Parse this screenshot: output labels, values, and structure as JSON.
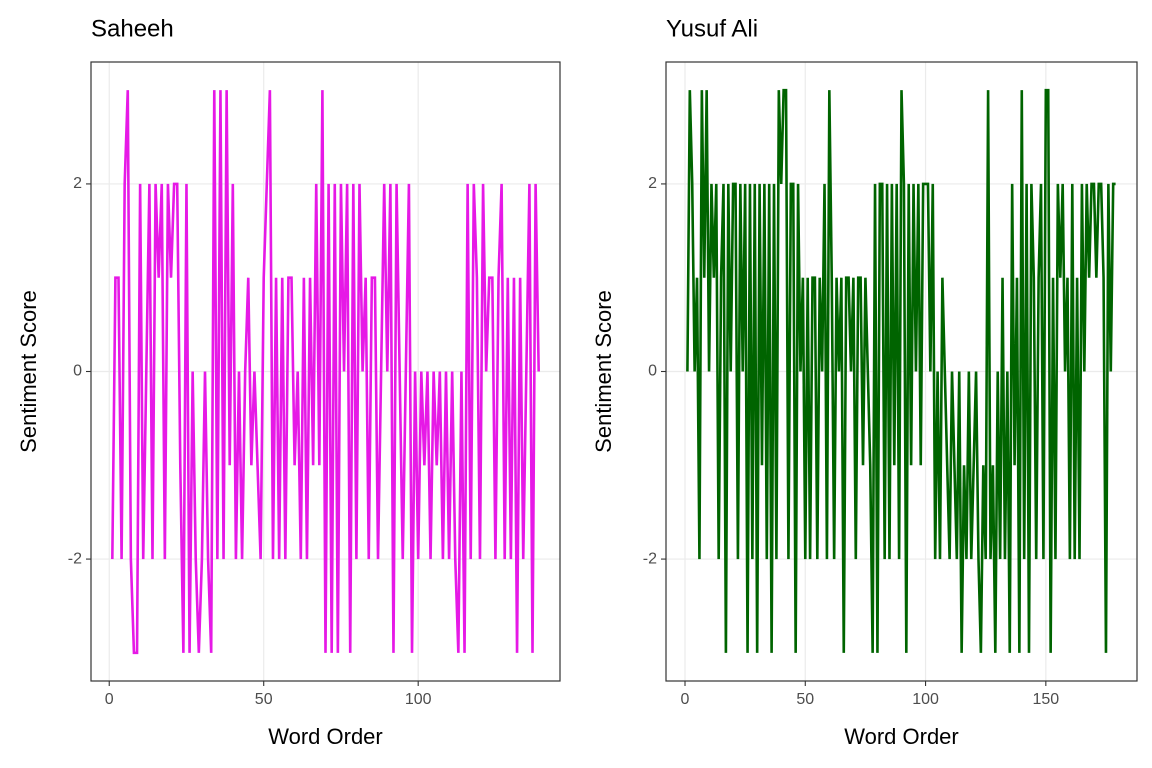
{
  "chart_data": [
    {
      "type": "line",
      "title": "Saheeh",
      "x_label": "Word Order",
      "y_label": "Sentiment Score",
      "color": "#e619e6",
      "xlim": [
        -5.9,
        145.9
      ],
      "ylim": [
        -3.3,
        3.3
      ],
      "xticks": [
        0,
        50,
        100
      ],
      "yticks": [
        -2,
        0,
        2
      ],
      "grid": true,
      "x": [
        1,
        2,
        3,
        4,
        5,
        6,
        7,
        8,
        9,
        10,
        11,
        12,
        13,
        14,
        15,
        16,
        17,
        18,
        19,
        20,
        21,
        22,
        23,
        24,
        25,
        26,
        27,
        28,
        29,
        30,
        31,
        32,
        33,
        34,
        35,
        36,
        37,
        38,
        39,
        40,
        41,
        42,
        43,
        44,
        45,
        46,
        47,
        48,
        49,
        50,
        51,
        52,
        53,
        54,
        55,
        56,
        57,
        58,
        59,
        60,
        61,
        62,
        63,
        64,
        65,
        66,
        67,
        68,
        69,
        70,
        71,
        72,
        73,
        74,
        75,
        76,
        77,
        78,
        79,
        80,
        81,
        82,
        83,
        84,
        85,
        86,
        87,
        88,
        89,
        90,
        91,
        92,
        93,
        94,
        95,
        96,
        97,
        98,
        99,
        100,
        101,
        102,
        103,
        104,
        105,
        106,
        107,
        108,
        109,
        110,
        111,
        112,
        113,
        114,
        115,
        116,
        117,
        118,
        119,
        120,
        121,
        122,
        123,
        124,
        125,
        126,
        127,
        128,
        129,
        130,
        131,
        132,
        133,
        134,
        135,
        136,
        137,
        138,
        139
      ],
      "values": [
        -2,
        1,
        1,
        -2,
        2,
        3,
        -2,
        -3,
        -3,
        2,
        -2,
        0,
        2,
        -2,
        2,
        1,
        2,
        -2,
        2,
        1,
        2,
        2,
        -1,
        -3,
        2,
        -3,
        0,
        -2,
        -3,
        -2,
        0,
        -2,
        -3,
        3,
        -2,
        3,
        -2,
        3,
        -1,
        2,
        -2,
        0,
        -2,
        0,
        1,
        -1,
        0,
        -1,
        -2,
        1,
        2,
        3,
        -2,
        1,
        -2,
        1,
        -2,
        1,
        1,
        -1,
        0,
        -2,
        1,
        -2,
        1,
        -1,
        2,
        -1,
        3,
        -3,
        2,
        -3,
        2,
        -3,
        2,
        0,
        2,
        -3,
        2,
        -2,
        2,
        0,
        1,
        -2,
        1,
        1,
        -2,
        0,
        2,
        0,
        2,
        -3,
        2,
        0,
        -2,
        0,
        2,
        -3,
        0,
        -2,
        0,
        -1,
        0,
        -2,
        0,
        -1,
        0,
        -2,
        0,
        -2,
        0,
        -2,
        -3,
        0,
        -3,
        2,
        -2,
        2,
        1,
        -2,
        2,
        0,
        1,
        1,
        -2,
        1,
        2,
        -2,
        1,
        -2,
        1,
        -3,
        1,
        -2,
        0,
        2,
        -3,
        2,
        0
      ]
    },
    {
      "type": "line",
      "title": "Yusuf Ali",
      "x_label": "Word Order",
      "y_label": "Sentiment Score",
      "color": "#006400",
      "xlim": [
        -7.9,
        187.9
      ],
      "ylim": [
        -3.3,
        3.3
      ],
      "xticks": [
        0,
        50,
        100,
        150
      ],
      "yticks": [
        -2,
        0,
        2
      ],
      "grid": true,
      "x": [
        1,
        2,
        3,
        4,
        5,
        6,
        7,
        8,
        9,
        10,
        11,
        12,
        13,
        14,
        15,
        16,
        17,
        18,
        19,
        20,
        21,
        22,
        23,
        24,
        25,
        26,
        27,
        28,
        29,
        30,
        31,
        32,
        33,
        34,
        35,
        36,
        37,
        38,
        39,
        40,
        41,
        42,
        43,
        44,
        45,
        46,
        47,
        48,
        49,
        50,
        51,
        52,
        53,
        54,
        55,
        56,
        57,
        58,
        59,
        60,
        61,
        62,
        63,
        64,
        65,
        66,
        67,
        68,
        69,
        70,
        71,
        72,
        73,
        74,
        75,
        76,
        77,
        78,
        79,
        80,
        81,
        82,
        83,
        84,
        85,
        86,
        87,
        88,
        89,
        90,
        91,
        92,
        93,
        94,
        95,
        96,
        97,
        98,
        99,
        100,
        101,
        102,
        103,
        104,
        105,
        106,
        107,
        108,
        109,
        110,
        111,
        112,
        113,
        114,
        115,
        116,
        117,
        118,
        119,
        120,
        121,
        122,
        123,
        124,
        125,
        126,
        127,
        128,
        129,
        130,
        131,
        132,
        133,
        134,
        135,
        136,
        137,
        138,
        139,
        140,
        141,
        142,
        143,
        144,
        145,
        146,
        147,
        148,
        149,
        150,
        151,
        152,
        153,
        154,
        155,
        156,
        157,
        158,
        159,
        160,
        161,
        162,
        163,
        164,
        165,
        166,
        167,
        168,
        169,
        170,
        171,
        172,
        173,
        174,
        175,
        176,
        177,
        178,
        179
      ],
      "values": [
        0,
        3,
        2,
        0,
        1,
        -2,
        3,
        1,
        3,
        0,
        2,
        1,
        2,
        -2,
        1,
        2,
        -3,
        2,
        0,
        2,
        2,
        -2,
        2,
        0,
        2,
        -3,
        2,
        -2,
        2,
        -3,
        2,
        -1,
        2,
        -2,
        2,
        -3,
        2,
        -2,
        3,
        2,
        3,
        3,
        -2,
        2,
        2,
        -3,
        2,
        0,
        1,
        -2,
        1,
        -2,
        1,
        1,
        -2,
        1,
        0,
        2,
        -2,
        3,
        1,
        -2,
        1,
        0,
        1,
        -3,
        1,
        1,
        0,
        1,
        -2,
        1,
        1,
        -1,
        1,
        0,
        -1,
        -3,
        2,
        -3,
        2,
        2,
        -2,
        2,
        -2,
        2,
        -1,
        2,
        -2,
        3,
        2,
        -3,
        2,
        -1,
        2,
        0,
        2,
        -1,
        2,
        2,
        2,
        0,
        2,
        -2,
        0,
        -2,
        1,
        0,
        -1,
        -2,
        0,
        -1,
        -2,
        0,
        -3,
        -1,
        -2,
        0,
        -2,
        -1,
        0,
        -2,
        -3,
        -1,
        -2,
        3,
        -2,
        -1,
        -3,
        0,
        -2,
        1,
        -2,
        0,
        -3,
        2,
        -1,
        1,
        -3,
        3,
        -2,
        2,
        -3,
        2,
        1,
        -2,
        1,
        2,
        -2,
        3,
        3,
        -3,
        1,
        -2,
        2,
        1,
        2,
        0,
        1,
        -2,
        2,
        -2,
        1,
        -2,
        2,
        0,
        2,
        1,
        2,
        2,
        1,
        2,
        2,
        1,
        -3,
        2,
        0,
        2,
        2
      ]
    }
  ]
}
